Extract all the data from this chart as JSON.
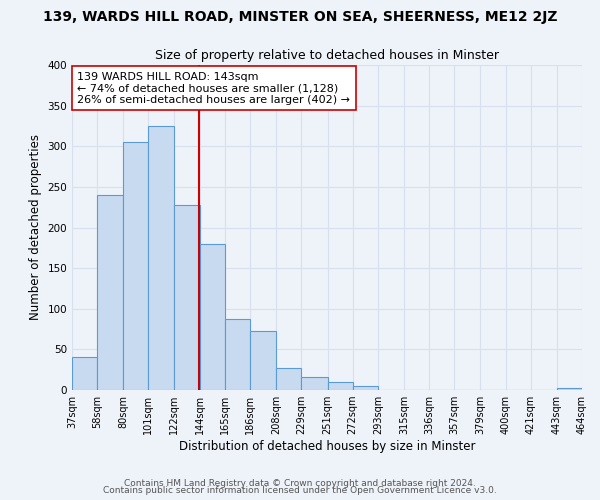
{
  "title": "139, WARDS HILL ROAD, MINSTER ON SEA, SHEERNESS, ME12 2JZ",
  "subtitle": "Size of property relative to detached houses in Minster",
  "xlabel": "Distribution of detached houses by size in Minster",
  "ylabel": "Number of detached properties",
  "bin_edges": [
    37,
    58,
    80,
    101,
    122,
    144,
    165,
    186,
    208,
    229,
    251,
    272,
    293,
    315,
    336,
    357,
    379,
    400,
    421,
    443,
    464
  ],
  "counts": [
    41,
    240,
    305,
    325,
    228,
    180,
    88,
    73,
    27,
    16,
    10,
    5,
    0,
    0,
    0,
    0,
    0,
    0,
    0,
    3
  ],
  "bar_color": "#c8daf0",
  "bar_edge_color": "#5b9bd5",
  "vline_x": 143,
  "vline_color": "#cc0000",
  "annotation_line1": "139 WARDS HILL ROAD: 143sqm",
  "annotation_line2": "← 74% of detached houses are smaller (1,128)",
  "annotation_line3": "26% of semi-detached houses are larger (402) →",
  "annotation_box_color": "#ffffff",
  "annotation_box_edge": "#cc0000",
  "ylim": [
    0,
    400
  ],
  "tick_labels": [
    "37sqm",
    "58sqm",
    "80sqm",
    "101sqm",
    "122sqm",
    "144sqm",
    "165sqm",
    "186sqm",
    "208sqm",
    "229sqm",
    "251sqm",
    "272sqm",
    "293sqm",
    "315sqm",
    "336sqm",
    "357sqm",
    "379sqm",
    "400sqm",
    "421sqm",
    "443sqm",
    "464sqm"
  ],
  "footer1": "Contains HM Land Registry data © Crown copyright and database right 2024.",
  "footer2": "Contains public sector information licensed under the Open Government Licence v3.0.",
  "background_color": "#eef2f9",
  "grid_color": "#d8e0ee",
  "title_fontsize": 10,
  "subtitle_fontsize": 9,
  "axis_label_fontsize": 8.5,
  "tick_fontsize": 7,
  "footer_fontsize": 6.5,
  "annotation_fontsize": 8
}
